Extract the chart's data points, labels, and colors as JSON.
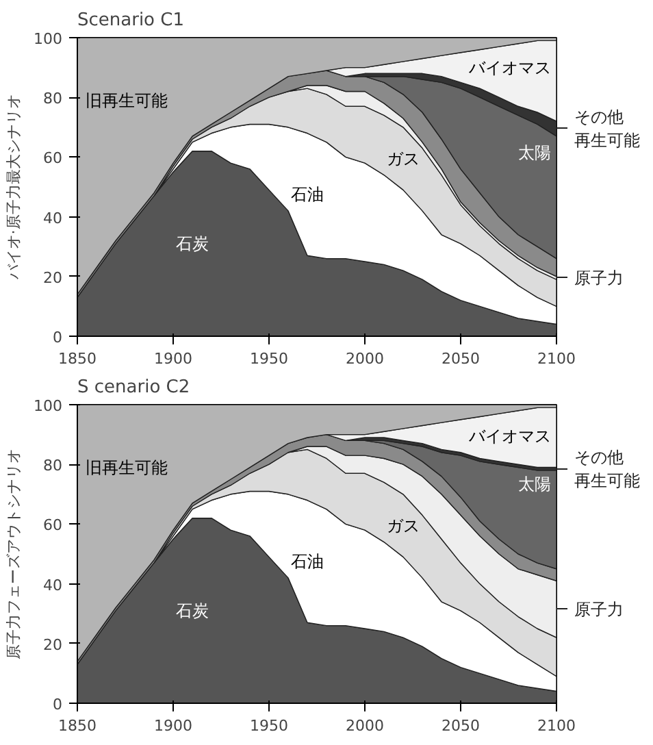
{
  "chart_data": [
    {
      "type": "area",
      "stacked": true,
      "legend": "right",
      "title": "Scenario C1",
      "ylabel": "バイオ·原子力最大シナリオ",
      "x": [
        1850,
        1860,
        1870,
        1880,
        1890,
        1900,
        1910,
        1920,
        1930,
        1940,
        1950,
        1960,
        1970,
        1980,
        1990,
        2000,
        2010,
        2020,
        2030,
        2040,
        2050,
        2060,
        2070,
        2080,
        2090,
        2100
      ],
      "xlim": [
        1850,
        2100
      ],
      "ylim": [
        0,
        100
      ],
      "xticks": [
        1850,
        1900,
        1950,
        2000,
        2050,
        2100
      ],
      "yticks": [
        0,
        20,
        40,
        60,
        80,
        100
      ],
      "series": [
        {
          "name": "石炭",
          "color": "#555555",
          "values": [
            13,
            22,
            31,
            39,
            47,
            55,
            62,
            62,
            58,
            56,
            49,
            42,
            27,
            26,
            26,
            25,
            24,
            22,
            19,
            15,
            12,
            10,
            8,
            6,
            5,
            4
          ]
        },
        {
          "name": "石油",
          "color": "#ffffff",
          "values": [
            null,
            null,
            null,
            null,
            0,
            1,
            3,
            6,
            12,
            15,
            22,
            28,
            41,
            39,
            34,
            33,
            30,
            27,
            23,
            19,
            19,
            17,
            14,
            11,
            8,
            6
          ]
        },
        {
          "name": "ガス",
          "color": "#dcdcdc",
          "values": [
            null,
            null,
            null,
            null,
            0,
            1,
            1,
            2,
            3,
            6,
            9,
            12,
            15,
            16,
            17,
            19,
            20,
            21,
            21,
            20,
            13,
            10,
            9,
            9,
            9,
            9
          ]
        },
        {
          "name": "原子力",
          "color": "#eeeeee",
          "values": [
            null,
            null,
            null,
            null,
            null,
            null,
            null,
            null,
            null,
            null,
            null,
            0,
            1,
            3,
            5,
            5,
            4,
            3,
            2,
            2,
            1,
            1,
            1,
            1,
            1,
            1
          ]
        },
        {
          "color": "#8a8a8a",
          "values": [
            1,
            1,
            1,
            1,
            1,
            1,
            1,
            1,
            2,
            2,
            3,
            5,
            4,
            5,
            5,
            5,
            7,
            8,
            10,
            10,
            11,
            10,
            8,
            7,
            7,
            6
          ]
        },
        {
          "name": "太陽",
          "color": "#666666",
          "values": [
            null,
            null,
            null,
            null,
            null,
            null,
            null,
            null,
            null,
            null,
            null,
            null,
            null,
            null,
            null,
            0,
            2,
            6,
            11,
            19,
            27,
            32,
            37,
            40,
            41,
            41
          ]
        },
        {
          "name": "その他再生可能",
          "color": "#333333",
          "values": [
            null,
            null,
            null,
            null,
            null,
            null,
            null,
            null,
            null,
            null,
            null,
            null,
            null,
            null,
            0,
            1,
            1,
            1,
            2,
            2,
            2,
            3,
            3,
            3,
            4,
            5
          ]
        },
        {
          "name": "バイオマス",
          "color": "#f2f2f2",
          "values": [
            null,
            null,
            null,
            null,
            null,
            null,
            null,
            null,
            null,
            null,
            null,
            null,
            null,
            0,
            3,
            2,
            3,
            4,
            5,
            7,
            10,
            13,
            17,
            21,
            24,
            27
          ]
        },
        {
          "name": "旧再生可能",
          "color": "#b4b4b4",
          "values": [
            86,
            77,
            68,
            60,
            52,
            42,
            33,
            29,
            25,
            21,
            17,
            13,
            12,
            11,
            10,
            10,
            9,
            8,
            7,
            6,
            5,
            4,
            3,
            2,
            1,
            1
          ]
        }
      ]
    },
    {
      "type": "area",
      "stacked": true,
      "legend": "right",
      "title": "S cenario C2",
      "ylabel": "原子力フェーズアウトシナリオ",
      "x": [
        1850,
        1860,
        1870,
        1880,
        1890,
        1900,
        1910,
        1920,
        1930,
        1940,
        1950,
        1960,
        1970,
        1980,
        1990,
        2000,
        2010,
        2020,
        2030,
        2040,
        2050,
        2060,
        2070,
        2080,
        2090,
        2100
      ],
      "xlim": [
        1850,
        2100
      ],
      "ylim": [
        0,
        100
      ],
      "xticks": [
        1850,
        1900,
        1950,
        2000,
        2050,
        2100
      ],
      "yticks": [
        0,
        20,
        40,
        60,
        80,
        100
      ],
      "series": [
        {
          "name": "石炭",
          "color": "#555555",
          "values": [
            13,
            22,
            31,
            39,
            47,
            55,
            62,
            62,
            58,
            56,
            49,
            42,
            27,
            26,
            26,
            25,
            24,
            22,
            19,
            15,
            12,
            10,
            8,
            6,
            5,
            4
          ]
        },
        {
          "name": "石油",
          "color": "#ffffff",
          "values": [
            null,
            null,
            null,
            null,
            0,
            1,
            3,
            6,
            12,
            15,
            22,
            28,
            41,
            39,
            34,
            33,
            30,
            27,
            23,
            19,
            19,
            17,
            14,
            11,
            8,
            5
          ]
        },
        {
          "name": "ガス",
          "color": "#dcdcdc",
          "values": [
            null,
            null,
            null,
            null,
            0,
            1,
            1,
            2,
            3,
            6,
            9,
            14,
            17,
            17,
            17,
            19,
            20,
            21,
            21,
            21,
            16,
            13,
            12,
            12,
            12,
            13
          ]
        },
        {
          "name": "原子力",
          "color": "#eeeeee",
          "values": [
            null,
            null,
            null,
            null,
            null,
            null,
            null,
            null,
            null,
            null,
            null,
            0,
            1,
            4,
            6,
            6,
            8,
            10,
            13,
            15,
            16,
            16,
            16,
            16,
            18,
            19
          ]
        },
        {
          "color": "#8a8a8a",
          "values": [
            1,
            1,
            1,
            1,
            1,
            1,
            1,
            1,
            2,
            2,
            3,
            3,
            3,
            4,
            5,
            5,
            5,
            5,
            5,
            6,
            6,
            5,
            5,
            5,
            4,
            4
          ]
        },
        {
          "name": "太陽",
          "color": "#666666",
          "values": [
            null,
            null,
            null,
            null,
            null,
            null,
            null,
            null,
            null,
            null,
            null,
            null,
            null,
            null,
            null,
            0,
            1,
            2,
            5,
            8,
            14,
            20,
            25,
            29,
            31,
            33
          ]
        },
        {
          "name": "その他再生可能",
          "color": "#333333",
          "values": [
            null,
            null,
            null,
            null,
            null,
            null,
            null,
            null,
            null,
            null,
            null,
            null,
            null,
            null,
            0,
            1,
            1,
            1,
            1,
            1,
            1,
            1,
            1,
            1,
            1,
            1
          ]
        },
        {
          "name": "バイオマス",
          "color": "#f2f2f2",
          "values": [
            null,
            null,
            null,
            null,
            null,
            null,
            null,
            null,
            null,
            null,
            null,
            null,
            null,
            0,
            2,
            1,
            2,
            4,
            6,
            9,
            11,
            14,
            16,
            18,
            20,
            20
          ]
        },
        {
          "name": "旧再生可能",
          "color": "#b4b4b4",
          "values": [
            86,
            77,
            68,
            60,
            52,
            42,
            33,
            29,
            25,
            21,
            17,
            13,
            11,
            10,
            10,
            10,
            9,
            8,
            7,
            6,
            5,
            4,
            3,
            2,
            1,
            1
          ]
        }
      ]
    }
  ]
}
